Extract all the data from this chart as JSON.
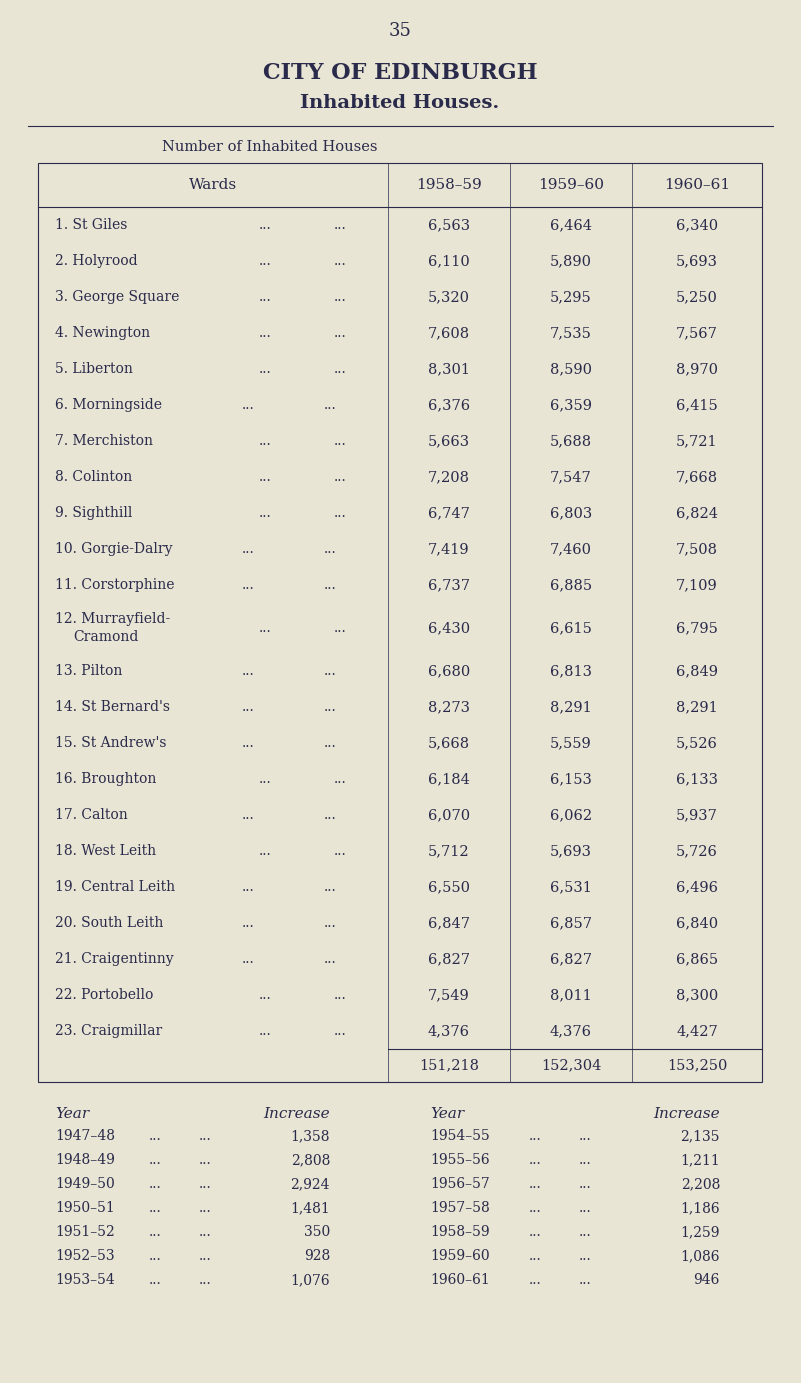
{
  "page_number": "35",
  "title1": "CITY OF EDINBURGH",
  "title2": "Inhabited Houses.",
  "subtitle": "Number of Inhabited Houses",
  "bg_color": "#e8e5d5",
  "text_color": "#2a2a4a",
  "col_headers": [
    "Wards",
    "1958–59",
    "1959–60",
    "1960–61"
  ],
  "wards": [
    [
      "1. St Giles",
      false
    ],
    [
      "2. Holyrood",
      false
    ],
    [
      "3. George Square",
      false
    ],
    [
      "4. Newington",
      false
    ],
    [
      "5. Liberton",
      false
    ],
    [
      "6. Morningside ...",
      true
    ],
    [
      "7. Merchiston",
      false
    ],
    [
      "8. Colinton",
      false
    ],
    [
      "9. Sighthill",
      false
    ],
    [
      "10. Gorgie-Dalry ...",
      true
    ],
    [
      "11. Corstorphine ...",
      true
    ],
    [
      "12. Murrayfield-||Cramond",
      false
    ],
    [
      "13. Pilton ...",
      true
    ],
    [
      "14. St Bernard's ...",
      true
    ],
    [
      "15. St Andrew's ...",
      true
    ],
    [
      "16. Broughton",
      false
    ],
    [
      "17. Calton ...",
      true
    ],
    [
      "18. West Leith",
      false
    ],
    [
      "19. Central Leith ...",
      true
    ],
    [
      "20. South Leith ...",
      true
    ],
    [
      "21. Craigentinny ...",
      true
    ],
    [
      "22. Portobello",
      false
    ],
    [
      "23. Craigmillar",
      false
    ]
  ],
  "col1": [
    "6,563",
    "6,110",
    "5,320",
    "7,608",
    "8,301",
    "6,376",
    "5,663",
    "7,208",
    "6,747",
    "7,419",
    "6,737",
    "6,430",
    "6,680",
    "8,273",
    "5,668",
    "6,184",
    "6,070",
    "5,712",
    "6,550",
    "6,847",
    "6,827",
    "7,549",
    "4,376"
  ],
  "col2": [
    "6,464",
    "5,890",
    "5,295",
    "7,535",
    "8,590",
    "6,359",
    "5,688",
    "7,547",
    "6,803",
    "7,460",
    "6,885",
    "6,615",
    "6,813",
    "8,291",
    "5,559",
    "6,153",
    "6,062",
    "5,693",
    "6,531",
    "6,857",
    "6,827",
    "8,011",
    "4,376"
  ],
  "col3": [
    "6,340",
    "5,693",
    "5,250",
    "7,567",
    "8,970",
    "6,415",
    "5,721",
    "7,668",
    "6,824",
    "7,508",
    "7,109",
    "6,795",
    "6,849",
    "8,291",
    "5,526",
    "6,133",
    "5,937",
    "5,726",
    "6,496",
    "6,840",
    "6,865",
    "8,300",
    "4,427"
  ],
  "totals": [
    "151,218",
    "152,304",
    "153,250"
  ],
  "year_data_left": [
    [
      "1947–48",
      "1,358"
    ],
    [
      "1948–49",
      "2,808"
    ],
    [
      "1949–50",
      "2,924"
    ],
    [
      "1950–51",
      "1,481"
    ],
    [
      "1951–52",
      "350"
    ],
    [
      "1952–53",
      "928"
    ],
    [
      "1953–54",
      "1,076"
    ]
  ],
  "year_data_right": [
    [
      "1954–55",
      "2,135"
    ],
    [
      "1955–56",
      "1,211"
    ],
    [
      "1956–57",
      "2,208"
    ],
    [
      "1957–58",
      "1,186"
    ],
    [
      "1958–59",
      "1,259"
    ],
    [
      "1959–60",
      "1,086"
    ],
    [
      "1960–61",
      "946"
    ]
  ]
}
